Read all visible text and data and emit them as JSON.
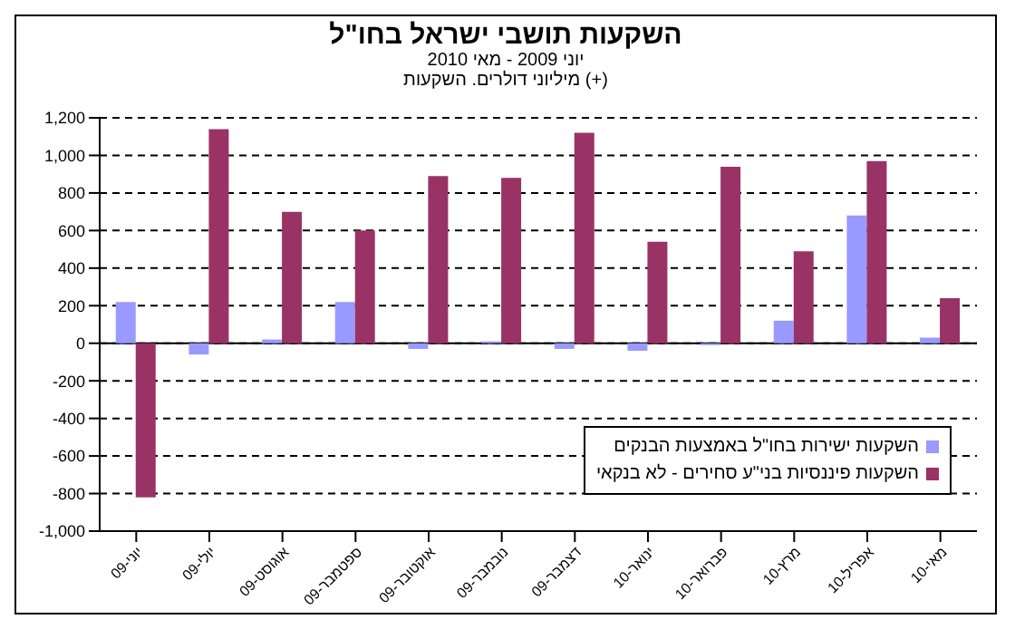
{
  "chart_data": {
    "type": "bar",
    "title": "השקעות תושבי ישראל בחו\"ל",
    "subtitle": "יוני 2009 - מאי 2010",
    "annotations": [
      "מיליוני דולרים. השקעות (+)"
    ],
    "categories": [
      "יוני-09",
      "יולי-09",
      "אוגוסט-09",
      "ספטמבר-09",
      "אוקטובר-09",
      "נובמבר-09",
      "דצמבר-09",
      "ינואר-10",
      "פברואר-10",
      "מרץ-10",
      "אפריל-10",
      "מאי-10"
    ],
    "series": [
      {
        "name": "השקעות ישירות בחו\"ל באמצעות הבנקים",
        "color": "#9999ff",
        "values": [
          220,
          -60,
          20,
          220,
          -30,
          10,
          -30,
          -40,
          -10,
          120,
          680,
          30
        ]
      },
      {
        "name": "השקעות פיננסיות בני\"ע סחירים - לא בנקאי",
        "color": "#993366",
        "values": [
          -820,
          1140,
          700,
          600,
          890,
          880,
          1120,
          540,
          940,
          490,
          970,
          240
        ]
      }
    ],
    "ylim": [
      -1000,
      1200
    ],
    "yticks": [
      {
        "value": -1000,
        "label": "-1,000"
      },
      -800,
      -600,
      -400,
      -200,
      0,
      200,
      400,
      600,
      800,
      {
        "value": 1000,
        "label": "1,000"
      },
      {
        "value": 1200,
        "label": "1,200"
      }
    ],
    "grid": "y",
    "legend": "bottom right"
  }
}
